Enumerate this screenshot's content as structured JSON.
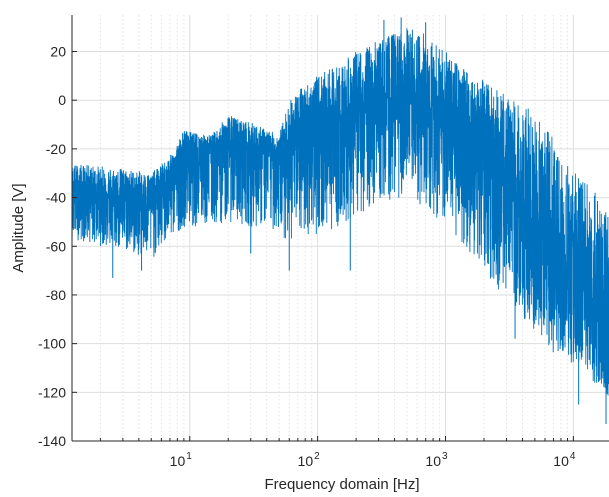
{
  "chart_data": {
    "type": "line",
    "title": "",
    "xlabel": "Frequency domain [Hz]",
    "ylabel": "Amplitude [V]",
    "xscale": "log",
    "xlim": [
      1.2,
      19000
    ],
    "ylim": [
      -140,
      35
    ],
    "grid": true,
    "minor_grid_x": true,
    "legend": "none",
    "line_color": "#0072BD",
    "x_ticks": [
      {
        "value": 10,
        "base": "10",
        "exp": "1"
      },
      {
        "value": 100,
        "base": "10",
        "exp": "2"
      },
      {
        "value": 1000,
        "base": "10",
        "exp": "3"
      },
      {
        "value": 10000,
        "base": "10",
        "exp": "4"
      }
    ],
    "y_ticks": [
      20,
      0,
      -20,
      -40,
      -60,
      -80,
      -100,
      -120,
      -140
    ],
    "y_tick_labels": [
      "20",
      "0",
      "-20",
      "-40",
      "-60",
      "-80",
      "-100",
      "-120",
      "-140"
    ],
    "series": [
      {
        "x": [
          1.2,
          2,
          3,
          5,
          7,
          9,
          12,
          15,
          20,
          30,
          40,
          50,
          60,
          80,
          100,
          150,
          200,
          300,
          500,
          700,
          1000,
          1500,
          2000,
          3000,
          5000,
          7000,
          10000,
          15000,
          19000
        ],
        "upper": [
          -26,
          -27,
          -28,
          -30,
          -23,
          -12,
          -14,
          -14,
          -6,
          -9,
          -12,
          -14,
          0,
          7,
          10,
          15,
          20,
          25,
          30,
          28,
          20,
          12,
          8,
          2,
          -5,
          -15,
          -28,
          -38,
          -45
        ],
        "center": [
          -38,
          -38,
          -39,
          -40,
          -32,
          -22,
          -20,
          -20,
          -18,
          -20,
          -20,
          -22,
          -16,
          -12,
          -10,
          -8,
          -5,
          -2,
          0,
          -2,
          -5,
          -10,
          -20,
          -35,
          -55,
          -68,
          -80,
          -90,
          -96
        ],
        "lower": [
          -57,
          -60,
          -62,
          -66,
          -57,
          -52,
          -52,
          -52,
          -50,
          -52,
          -52,
          -55,
          -58,
          -56,
          -55,
          -52,
          -48,
          -42,
          -40,
          -45,
          -52,
          -62,
          -70,
          -82,
          -95,
          -105,
          -112,
          -118,
          -122
        ],
        "spikes": [
          {
            "x": 2.5,
            "y": -73
          },
          {
            "x": 4.2,
            "y": -70
          },
          {
            "x": 9.5,
            "y": -13
          },
          {
            "x": 30,
            "y": -63
          },
          {
            "x": 60,
            "y": -70
          },
          {
            "x": 180,
            "y": -70
          },
          {
            "x": 330,
            "y": 33
          },
          {
            "x": 450,
            "y": 34
          },
          {
            "x": 700,
            "y": 32
          },
          {
            "x": 3500,
            "y": -98
          },
          {
            "x": 11000,
            "y": -125
          },
          {
            "x": 18000,
            "y": -133
          }
        ]
      }
    ]
  }
}
